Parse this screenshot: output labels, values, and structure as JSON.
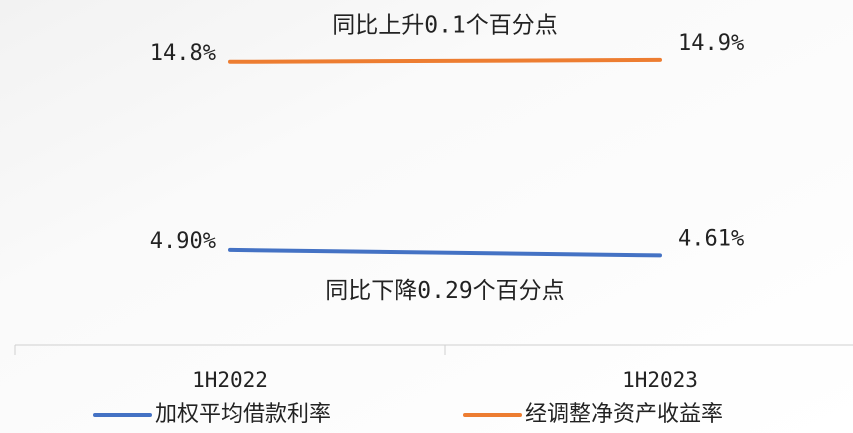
{
  "chart_data": {
    "type": "line",
    "categories": [
      "1H2022",
      "1H2023"
    ],
    "series": [
      {
        "name": "加权平均借款利率",
        "color": "#4472c4",
        "values": [
          4.9,
          4.61
        ],
        "value_labels": [
          "4.90%",
          "4.61%"
        ]
      },
      {
        "name": "经调整净资产收益率",
        "color": "#ed7d31",
        "values": [
          14.8,
          14.9
        ],
        "value_labels": [
          "14.8%",
          "14.9%"
        ]
      }
    ],
    "annotations": [
      "同比下降0.29个百分点",
      "同比上升0.1个百分点"
    ],
    "ylim": [
      0,
      17
    ]
  }
}
